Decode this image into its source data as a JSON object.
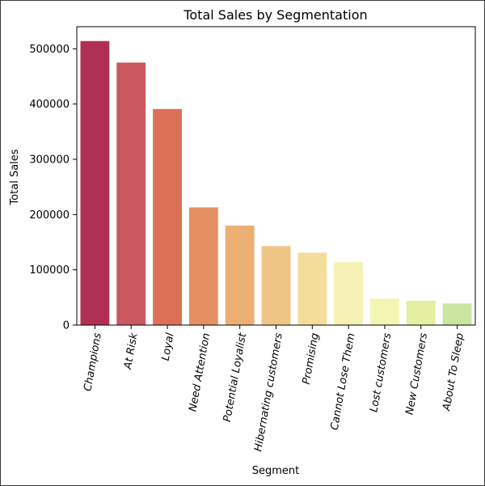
{
  "chart_data": {
    "type": "bar",
    "title": "Total Sales by Segmentation",
    "xlabel": "Segment",
    "ylabel": "Total Sales",
    "categories": [
      "Champions",
      "At Risk",
      "Loyal",
      "Need Attention",
      "Potential Loyalist",
      "Hibernating customers",
      "Promising",
      "Cannot Lose Them",
      "Lost customers",
      "New Customers",
      "About To Sleep"
    ],
    "values": [
      514000,
      475000,
      391000,
      213000,
      180000,
      143000,
      131000,
      114000,
      48000,
      44000,
      39000
    ],
    "colors": [
      "#b03055",
      "#cb5760",
      "#dc7057",
      "#e59061",
      "#ecae72",
      "#efc586",
      "#f4dd9b",
      "#f6f1b4",
      "#f3f6b3",
      "#e4efa0",
      "#c9e5a0"
    ],
    "yticks": [
      0,
      100000,
      200000,
      300000,
      400000,
      500000
    ],
    "ylim": [
      0,
      540000
    ],
    "grid": false,
    "legend": "none"
  }
}
